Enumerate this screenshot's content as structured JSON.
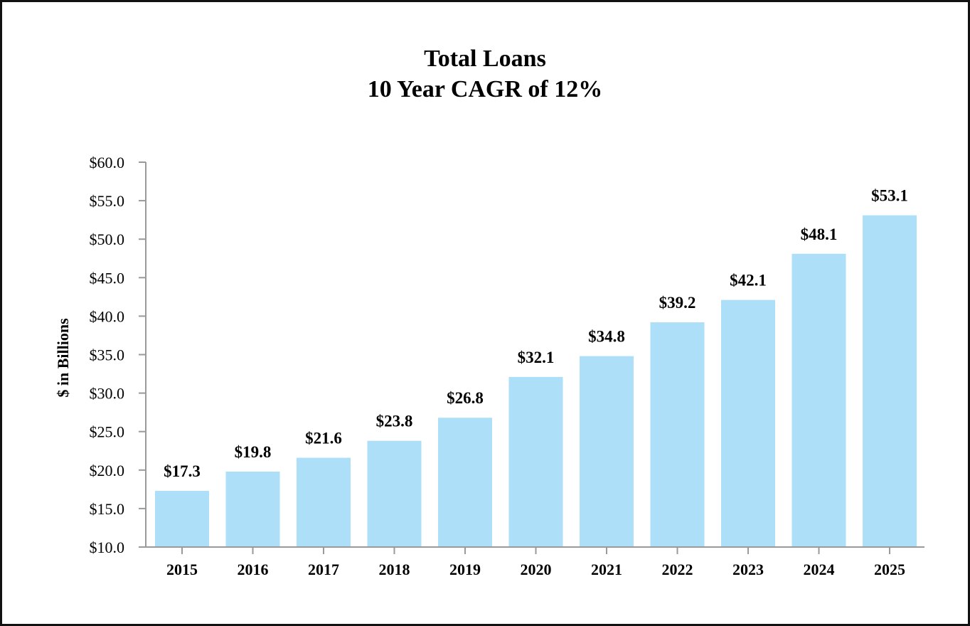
{
  "chart_data": {
    "type": "bar",
    "title": "Total Loans",
    "subtitle": "10 Year CAGR of 12%",
    "xlabel": "",
    "ylabel": "$ in Billions",
    "categories": [
      "2015",
      "2016",
      "2017",
      "2018",
      "2019",
      "2020",
      "2021",
      "2022",
      "2023",
      "2024",
      "2025"
    ],
    "values": [
      17.3,
      19.8,
      21.6,
      23.8,
      26.8,
      32.1,
      34.8,
      39.2,
      42.1,
      48.1,
      53.1
    ],
    "data_labels": [
      "$17.3",
      "$19.8",
      "$21.6",
      "$23.8",
      "$26.8",
      "$32.1",
      "$34.8",
      "$39.2",
      "$42.1",
      "$48.1",
      "$53.1"
    ],
    "ylim": [
      10,
      60
    ],
    "y_ticks": [
      10,
      15,
      20,
      25,
      30,
      35,
      40,
      45,
      50,
      55,
      60
    ],
    "y_tick_labels": [
      "$10.0",
      "$15.0",
      "$20.0",
      "$25.0",
      "$30.0",
      "$35.0",
      "$40.0",
      "$45.0",
      "$50.0",
      "$55.0",
      "$60.0"
    ],
    "grid": false,
    "legend": null,
    "bar_color": "#ADDFF8",
    "axis_color": "#9A9A9A"
  }
}
